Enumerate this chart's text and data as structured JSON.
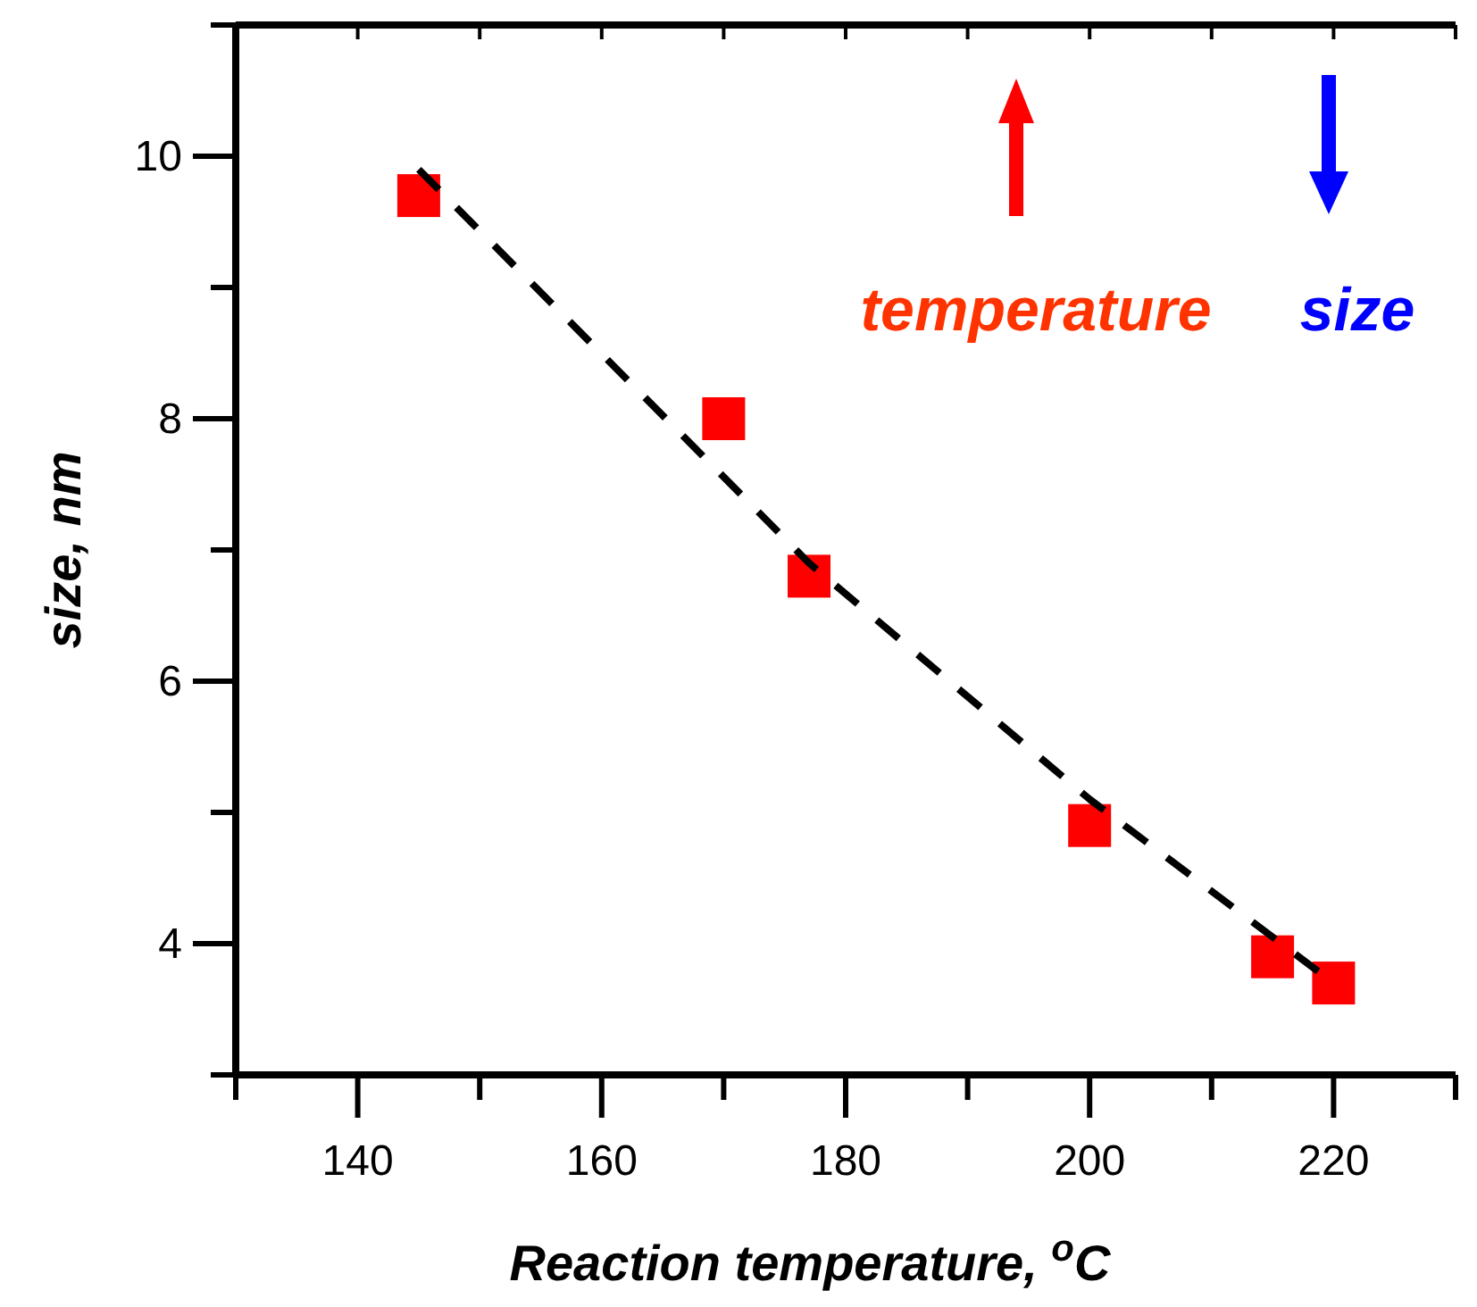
{
  "chart_data": {
    "type": "scatter",
    "xlabel": "Reaction temperature, $^{o}$C",
    "ylabel": "size, nm",
    "xlim": [
      130,
      230
    ],
    "xticks": [
      {
        "value": 130,
        "label": null
      },
      140,
      {
        "value": 150,
        "label": null
      },
      160,
      {
        "value": 170,
        "label": null
      },
      180,
      {
        "value": 190,
        "label": null
      },
      200,
      {
        "value": 210,
        "label": null
      },
      220,
      {
        "value": 230,
        "label": null
      }
    ],
    "ylim": [
      3,
      11
    ],
    "yticks": [
      {
        "value": 3,
        "label": null
      },
      4,
      {
        "value": 5,
        "label": null
      },
      6,
      {
        "value": 7,
        "label": null
      },
      8,
      {
        "value": 9,
        "label": null
      },
      10,
      {
        "value": 11,
        "label": null
      }
    ],
    "grid": false,
    "series": [
      {
        "color": "#ff0000",
        "marker": "square",
        "x": [
          145,
          170,
          177,
          200,
          215,
          220
        ],
        "values": [
          9.7,
          8.0,
          6.8,
          4.9,
          3.9,
          3.7
        ]
      },
      {
        "type": "line",
        "color": "#000000",
        "marker": "none",
        "line_style": "dashed",
        "x": [
          145,
          177,
          200,
          220
        ],
        "values": [
          9.9,
          6.9,
          5.1,
          3.7
        ]
      }
    ],
    "annotations": [
      "temperature",
      "size"
    ]
  }
}
